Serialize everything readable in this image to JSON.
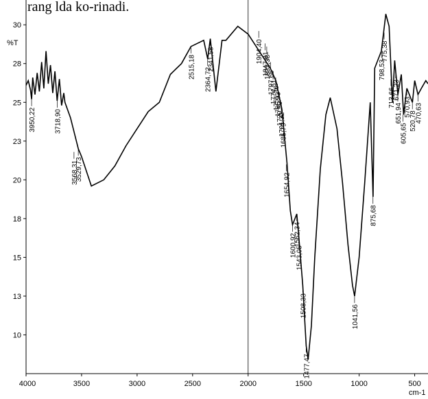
{
  "chart_data": {
    "type": "line",
    "title": "rang lda ko-rinadi.",
    "y_label": "%T",
    "x_label": "cm-1",
    "xlim": [
      4000,
      380
    ],
    "ylim": [
      7.5,
      31.6
    ],
    "xticks": [
      4000,
      3500,
      3000,
      2500,
      2000,
      1500,
      1000,
      500
    ],
    "yticks": [
      {
        "value": 10,
        "label": "10"
      },
      {
        "value": 12.5,
        "label": "13"
      },
      {
        "value": 15,
        "label": "15"
      },
      {
        "value": 17.5,
        "label": "18"
      },
      {
        "value": 20,
        "label": "20"
      },
      {
        "value": 22.5,
        "label": "23"
      },
      {
        "value": 25,
        "label": "25"
      },
      {
        "value": 27.5,
        "label": "28"
      },
      {
        "value": 30,
        "label": "30"
      }
    ],
    "vline": 2000,
    "x": [
      4000,
      3980,
      3960,
      3950,
      3940,
      3920,
      3900,
      3880,
      3860,
      3840,
      3820,
      3800,
      3780,
      3760,
      3740,
      3720,
      3700,
      3680,
      3660,
      3650,
      3600,
      3529,
      3500,
      3412,
      3300,
      3200,
      3100,
      3000,
      2900,
      2800,
      2700,
      2600,
      2515,
      2400,
      2364,
      2341,
      2290,
      2235,
      2200,
      2093,
      2000,
      1900,
      1800,
      1750,
      1697,
      1650,
      1620,
      1600,
      1562,
      1543,
      1508,
      1477,
      1460,
      1430,
      1400,
      1350,
      1300,
      1260,
      1200,
      1150,
      1100,
      1060,
      1041,
      1000,
      950,
      900,
      875,
      860,
      800,
      760,
      730,
      700,
      680,
      651,
      620,
      600,
      570,
      520,
      500,
      470,
      440,
      400,
      380
    ],
    "series": [
      {
        "name": "spectrum",
        "color": "#000000",
        "values": [
          26.1,
          26.4,
          25.8,
          25.2,
          26.6,
          25.5,
          26.9,
          25.7,
          27.6,
          25.9,
          28.3,
          26.2,
          27.4,
          25.6,
          27.0,
          25.1,
          26.5,
          24.8,
          25.6,
          25.0,
          24.0,
          22.0,
          21.5,
          19.6,
          20.0,
          20.9,
          22.2,
          23.3,
          24.4,
          25.0,
          26.8,
          27.5,
          28.6,
          29.0,
          27.8,
          29.1,
          25.7,
          29.0,
          29.0,
          29.9,
          29.4,
          28.3,
          27.2,
          26.4,
          24.6,
          21.1,
          18.0,
          17.1,
          17.8,
          16.3,
          13.2,
          9.3,
          8.4,
          10.6,
          15.0,
          20.7,
          24.2,
          25.3,
          23.3,
          19.8,
          15.8,
          13.2,
          12.5,
          15.0,
          19.8,
          25.0,
          18.9,
          27.2,
          28.3,
          30.7,
          29.9,
          25.0,
          27.7,
          25.5,
          26.8,
          24.2,
          25.9,
          25.0,
          26.4,
          25.5,
          25.9,
          26.4,
          26.2
        ]
      }
    ],
    "peaks": {
      "x": [
        3950.22,
        3718.9,
        3568.31,
        3529.73,
        2515.18,
        2364.72,
        2341.58,
        1904.4,
        1847.81,
        1832.38,
        1797.66,
        1774.51,
        1751.36,
        1735.93,
        1720.5,
        1701.22,
        1685.79,
        1654.92,
        1600.92,
        1562.34,
        1543.05,
        1508.33,
        1477.47,
        1041.56,
        875.68,
        798.53,
        775.38,
        713.66,
        671.23,
        651.94,
        605.65,
        570.93,
        520.78,
        470.63
      ],
      "y": [
        25.2,
        25.1,
        21.8,
        22.0,
        28.6,
        27.8,
        29.1,
        29.6,
        28.8,
        28.6,
        27.6,
        27.0,
        26.6,
        26.2,
        25.6,
        24.9,
        24.2,
        21.0,
        17.1,
        17.8,
        16.3,
        13.2,
        9.3,
        12.5,
        18.9,
        28.3,
        29.5,
        26.5,
        27.0,
        25.5,
        24.2,
        25.9,
        25.0,
        25.5
      ],
      "labels": [
        "3950,22",
        "3718,90",
        "3568,31",
        "3529,73",
        "2515,18",
        "2364,72",
        "2341,58",
        "1904,40",
        "1847,81",
        "1832,38",
        "1797,66",
        "1774,51",
        "1751,36",
        "1735,93",
        "1720,50",
        "1701,22",
        "1685,79",
        "1654,92",
        "1600,92",
        "1562,34",
        "1543,05",
        "1508,33",
        "1477,47",
        "1041,56",
        "875,68",
        "798,53",
        "775,38",
        "713,66",
        "671,23",
        "651,94",
        "605,65",
        "570,93",
        "520,78",
        "470,63"
      ]
    }
  }
}
